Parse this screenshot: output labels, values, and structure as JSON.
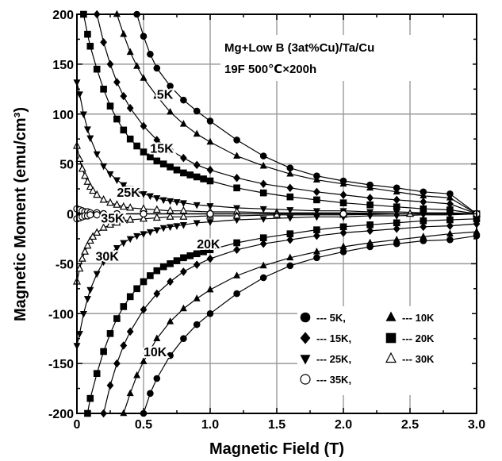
{
  "chart_data": {
    "type": "line",
    "xlabel": "Magnetic Field (T)",
    "ylabel": "Magnetic Moment (emu/cm³)",
    "xlim": [
      0,
      3.0
    ],
    "ylim": [
      -200,
      200
    ],
    "x_ticks": [
      "0",
      "0.5",
      "1.0",
      "1.5",
      "2.0",
      "2.5",
      "3.0"
    ],
    "y_ticks": [
      "200",
      "150",
      "100",
      "50",
      "0",
      "-50",
      "-100",
      "-150",
      "-200"
    ],
    "grid": true,
    "annotation_lines": [
      "Mg+Low B (3at%Cu)/Ta/Cu",
      "19F    500℃×200h"
    ],
    "legend": {
      "placement": "bottom-right",
      "entries": [
        {
          "marker": "circle",
          "label": "--- 5K,"
        },
        {
          "marker": "triangle",
          "label": "--- 10K"
        },
        {
          "marker": "diamond",
          "label": "--- 15K,"
        },
        {
          "marker": "square",
          "label": "--- 20K"
        },
        {
          "marker": "triangle-down",
          "label": "--- 25K,"
        },
        {
          "marker": "open-triangle",
          "label": "--- 30K"
        },
        {
          "marker": "open-circle",
          "label": "--- 35K,"
        }
      ]
    },
    "curve_labels": [
      {
        "text": "5K",
        "x": 0.6,
        "y": 120
      },
      {
        "text": "15K",
        "x": 0.55,
        "y": 66
      },
      {
        "text": "25K",
        "x": 0.3,
        "y": 22
      },
      {
        "text": "35K",
        "x": 0.18,
        "y": -4
      },
      {
        "text": "30K",
        "x": 0.14,
        "y": -42
      },
      {
        "text": "20K",
        "x": 0.9,
        "y": -30
      },
      {
        "text": "10K",
        "x": 0.5,
        "y": -138
      }
    ],
    "series": [
      {
        "temperature": "5K",
        "marker": "circle",
        "branch": "upper",
        "x": [
          0.45,
          0.5,
          0.55,
          0.6,
          0.7,
          0.8,
          0.9,
          1.0,
          1.2,
          1.4,
          1.6,
          1.8,
          2.0,
          2.2,
          2.4,
          2.6,
          2.8,
          3.0
        ],
        "y": [
          200,
          178,
          160,
          146,
          128,
          114,
          103,
          93,
          74,
          58,
          46,
          38,
          33,
          29,
          26,
          22,
          20,
          0
        ]
      },
      {
        "temperature": "5K",
        "marker": "circle",
        "branch": "lower",
        "x": [
          0.5,
          0.55,
          0.6,
          0.7,
          0.8,
          0.9,
          1.0,
          1.2,
          1.4,
          1.6,
          1.8,
          2.0,
          2.2,
          2.4,
          2.6,
          2.8,
          3.0
        ],
        "y": [
          -200,
          -180,
          -165,
          -142,
          -125,
          -111,
          -100,
          -80,
          -64,
          -52,
          -44,
          -38,
          -33,
          -30,
          -27,
          -26,
          -22
        ]
      },
      {
        "temperature": "10K",
        "marker": "triangle",
        "branch": "upper",
        "x": [
          0.3,
          0.35,
          0.4,
          0.45,
          0.5,
          0.6,
          0.7,
          0.8,
          0.9,
          1.0,
          1.2,
          1.4,
          1.6,
          1.8,
          2.0,
          2.2,
          2.4,
          2.6,
          2.8,
          3.0
        ],
        "y": [
          200,
          180,
          162,
          148,
          136,
          118,
          102,
          90,
          80,
          72,
          58,
          48,
          40,
          34,
          30,
          26,
          22,
          18,
          16,
          0
        ]
      },
      {
        "temperature": "10K",
        "marker": "triangle",
        "branch": "lower",
        "x": [
          0.35,
          0.4,
          0.45,
          0.5,
          0.6,
          0.7,
          0.8,
          0.9,
          1.0,
          1.2,
          1.4,
          1.6,
          1.8,
          2.0,
          2.2,
          2.4,
          2.6,
          2.8,
          3.0
        ],
        "y": [
          -200,
          -180,
          -162,
          -148,
          -125,
          -108,
          -95,
          -85,
          -76,
          -62,
          -52,
          -44,
          -38,
          -33,
          -29,
          -26,
          -23,
          -20,
          -18
        ]
      },
      {
        "temperature": "15K",
        "marker": "diamond",
        "branch": "upper",
        "x": [
          0.15,
          0.2,
          0.25,
          0.3,
          0.35,
          0.4,
          0.5,
          0.6,
          0.7,
          0.8,
          0.9,
          1.0,
          1.2,
          1.4,
          1.6,
          1.8,
          2.0,
          2.2,
          2.4,
          2.6,
          2.8,
          3.0
        ],
        "y": [
          200,
          172,
          150,
          132,
          118,
          106,
          88,
          74,
          64,
          56,
          49,
          44,
          36,
          30,
          26,
          22,
          19,
          16,
          14,
          12,
          10,
          0
        ]
      },
      {
        "temperature": "15K",
        "marker": "diamond",
        "branch": "lower",
        "x": [
          0.2,
          0.25,
          0.3,
          0.35,
          0.4,
          0.5,
          0.6,
          0.7,
          0.8,
          0.9,
          1.0,
          1.2,
          1.4,
          1.6,
          1.8,
          2.0,
          2.2,
          2.4,
          2.6,
          2.8,
          3.0
        ],
        "y": [
          -200,
          -172,
          -150,
          -132,
          -118,
          -96,
          -80,
          -68,
          -58,
          -51,
          -45,
          -36,
          -30,
          -26,
          -22,
          -19,
          -17,
          -15,
          -13,
          -12,
          -10
        ]
      },
      {
        "temperature": "20K",
        "marker": "square",
        "branch": "upper",
        "x": [
          0.05,
          0.08,
          0.1,
          0.15,
          0.2,
          0.25,
          0.3,
          0.35,
          0.4,
          0.45,
          0.5,
          0.55,
          0.6,
          0.65,
          0.7,
          0.75,
          0.8,
          0.85,
          0.9,
          0.95,
          1.0,
          1.2,
          1.4,
          1.6,
          1.8,
          2.0,
          2.2,
          2.4,
          2.6,
          2.8,
          3.0
        ],
        "y": [
          200,
          180,
          168,
          145,
          125,
          108,
          95,
          84,
          75,
          68,
          62,
          57,
          53,
          50,
          47,
          44,
          41,
          39,
          37,
          35,
          33,
          26,
          21,
          17,
          14,
          11,
          9,
          7,
          5,
          4,
          0
        ]
      },
      {
        "temperature": "20K",
        "marker": "square",
        "branch": "lower",
        "x": [
          0.08,
          0.1,
          0.15,
          0.2,
          0.25,
          0.3,
          0.35,
          0.4,
          0.45,
          0.5,
          0.55,
          0.6,
          0.65,
          0.7,
          0.75,
          0.8,
          0.85,
          0.9,
          0.95,
          1.0,
          1.2,
          1.4,
          1.6,
          1.8,
          2.0,
          2.2,
          2.4,
          2.6,
          2.8,
          3.0
        ],
        "y": [
          -200,
          -185,
          -160,
          -138,
          -120,
          -105,
          -93,
          -83,
          -75,
          -68,
          -62,
          -57,
          -53,
          -50,
          -47,
          -44,
          -42,
          -40,
          -38,
          -36,
          -29,
          -24,
          -20,
          -16,
          -13,
          -11,
          -9,
          -7,
          -6,
          -5
        ]
      },
      {
        "temperature": "25K",
        "marker": "triangle-down",
        "branch": "upper",
        "x": [
          0,
          0.02,
          0.05,
          0.08,
          0.1,
          0.15,
          0.2,
          0.25,
          0.3,
          0.35,
          0.4,
          0.45,
          0.5,
          0.55,
          0.6,
          0.65,
          0.7,
          0.75,
          0.8,
          0.9,
          1.0,
          1.2,
          1.4,
          1.6,
          1.8,
          2.0,
          2.2,
          2.4,
          2.6,
          2.8,
          3.0
        ],
        "y": [
          132,
          120,
          100,
          85,
          76,
          60,
          48,
          40,
          34,
          29,
          25,
          22,
          20,
          18,
          16,
          14,
          13,
          12,
          11,
          9,
          8,
          6,
          5,
          4,
          3,
          3,
          2,
          2,
          1,
          1,
          0
        ]
      },
      {
        "temperature": "25K",
        "marker": "triangle-down",
        "branch": "lower",
        "x": [
          0,
          0.02,
          0.05,
          0.08,
          0.1,
          0.15,
          0.2,
          0.25,
          0.3,
          0.35,
          0.4,
          0.45,
          0.5,
          0.55,
          0.6,
          0.65,
          0.7,
          0.75,
          0.8,
          0.9,
          1.0,
          1.2,
          1.4,
          1.6,
          1.8,
          2.0,
          2.2,
          2.4,
          2.6,
          2.8,
          3.0
        ],
        "y": [
          -132,
          -120,
          -100,
          -85,
          -76,
          -60,
          -48,
          -40,
          -34,
          -29,
          -25,
          -22,
          -20,
          -18,
          -16,
          -14,
          -13,
          -12,
          -11,
          -9,
          -8,
          -6,
          -5,
          -4,
          -3,
          -3,
          -2,
          -2,
          -1,
          -1,
          0
        ]
      },
      {
        "temperature": "30K",
        "marker": "open-triangle",
        "branch": "upper",
        "x": [
          0,
          0.02,
          0.04,
          0.06,
          0.08,
          0.1,
          0.12,
          0.15,
          0.2,
          0.25,
          0.3,
          0.35,
          0.4,
          0.5,
          0.6,
          0.7,
          0.8,
          1.0,
          1.2,
          1.5,
          2.0,
          2.5,
          3.0
        ],
        "y": [
          68,
          55,
          45,
          38,
          32,
          27,
          23,
          19,
          14,
          11,
          9,
          7,
          6,
          5,
          4,
          3,
          3,
          2,
          2,
          1,
          1,
          0,
          0
        ]
      },
      {
        "temperature": "30K",
        "marker": "open-triangle",
        "branch": "lower",
        "x": [
          0,
          0.02,
          0.04,
          0.06,
          0.08,
          0.1,
          0.12,
          0.15,
          0.2,
          0.25,
          0.3,
          0.35,
          0.4,
          0.5,
          0.6,
          0.7,
          0.8,
          1.0,
          1.2,
          1.5,
          2.0,
          2.5,
          3.0
        ],
        "y": [
          -68,
          -55,
          -45,
          -38,
          -32,
          -27,
          -23,
          -19,
          -14,
          -11,
          -9,
          -7,
          -6,
          -5,
          -4,
          -3,
          -3,
          -2,
          -2,
          -1,
          -1,
          0,
          0
        ]
      },
      {
        "temperature": "35K",
        "marker": "open-circle",
        "branch": "upper",
        "x": [
          0,
          0.02,
          0.04,
          0.06,
          0.08,
          0.1,
          0.15,
          0.2,
          0.3,
          0.5,
          1.0,
          2.0,
          3.0
        ],
        "y": [
          5,
          4,
          3,
          2,
          2,
          1,
          1,
          0,
          0,
          0,
          0,
          0,
          0
        ]
      },
      {
        "temperature": "35K",
        "marker": "open-circle",
        "branch": "lower",
        "x": [
          0,
          0.02,
          0.04,
          0.06,
          0.08,
          0.1,
          0.15,
          0.2,
          0.3,
          0.5,
          1.0,
          2.0,
          3.0
        ],
        "y": [
          -5,
          -4,
          -3,
          -2,
          -2,
          -1,
          -1,
          0,
          0,
          0,
          0,
          0,
          0
        ]
      }
    ]
  }
}
